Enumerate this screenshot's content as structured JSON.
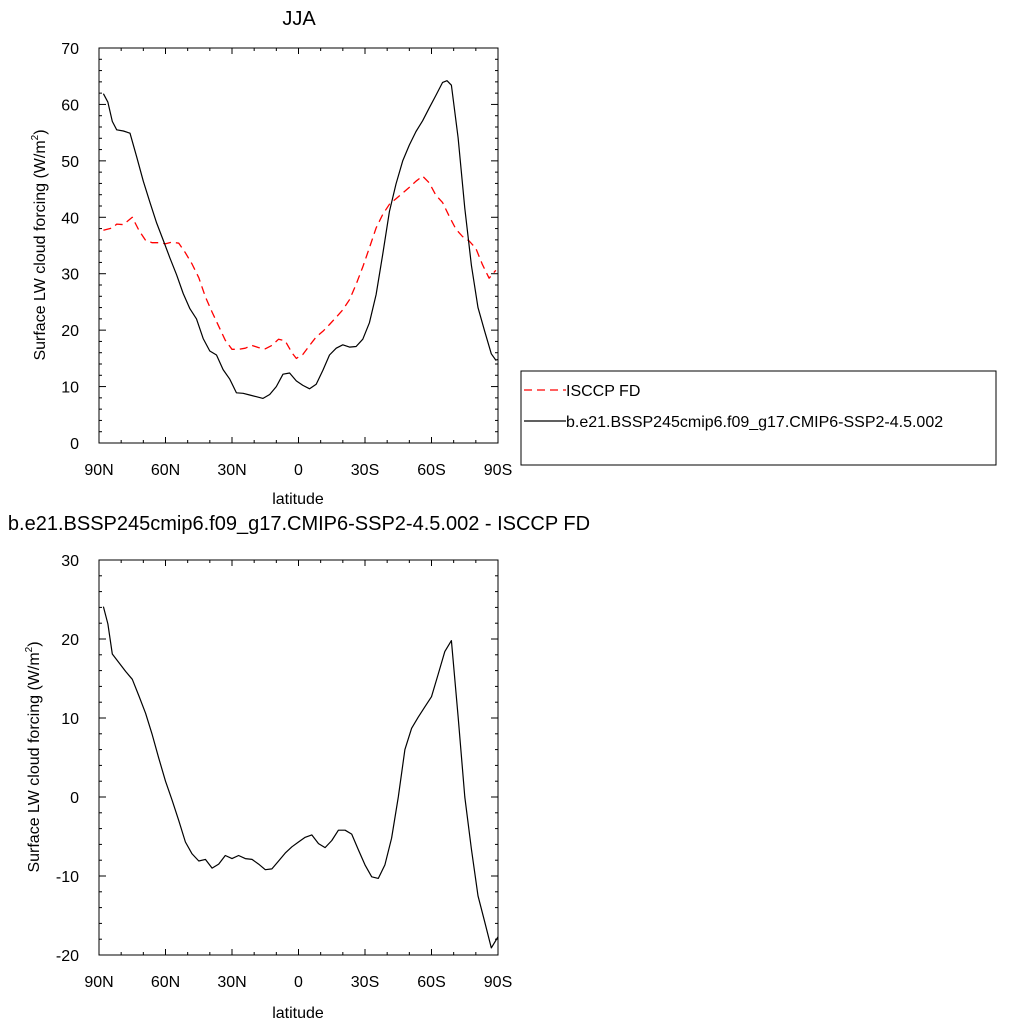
{
  "chart_data": [
    {
      "type": "line",
      "title": "JJA",
      "xlabel": "latitude",
      "ylabel": "Surface LW cloud forcing (W/m",
      "ylabel_sup": "2",
      "ylabel_tail": ")",
      "xlim": [
        90,
        -90
      ],
      "ylim": [
        0,
        70
      ],
      "x_ticks": [
        90,
        60,
        30,
        0,
        -30,
        -60,
        -90
      ],
      "x_tick_labels": [
        "90N",
        "60N",
        "30N",
        "0",
        "30S",
        "60S",
        "90S"
      ],
      "y_ticks": [
        0,
        10,
        20,
        30,
        40,
        50,
        60,
        70
      ],
      "y_tick_labels": [
        "0",
        "10",
        "20",
        "30",
        "40",
        "50",
        "60",
        "70"
      ],
      "grid": false,
      "legend_position": "right",
      "series": [
        {
          "name": "ISCCP FD",
          "color": "#ff0000",
          "dash": "dashed",
          "points": [
            [
              88,
              37.7
            ],
            [
              84,
              38.1
            ],
            [
              82,
              38.8
            ],
            [
              79,
              38.7
            ],
            [
              75,
              40.0
            ],
            [
              72,
              37.7
            ],
            [
              69,
              35.9
            ],
            [
              66,
              35.5
            ],
            [
              63,
              35.5
            ],
            [
              60,
              35.3
            ],
            [
              57,
              35.6
            ],
            [
              54,
              35.4
            ],
            [
              51,
              33.7
            ],
            [
              48,
              31.7
            ],
            [
              45,
              29.3
            ],
            [
              42,
              25.9
            ],
            [
              39,
              23.2
            ],
            [
              36,
              20.7
            ],
            [
              33,
              18.2
            ],
            [
              30,
              16.6
            ],
            [
              27,
              16.6
            ],
            [
              24,
              16.8
            ],
            [
              21,
              17.3
            ],
            [
              18,
              16.9
            ],
            [
              15,
              16.7
            ],
            [
              12,
              17.3
            ],
            [
              9,
              18.4
            ],
            [
              6,
              18.1
            ],
            [
              3,
              16.0
            ],
            [
              1,
              15.0
            ],
            [
              -2,
              15.7
            ],
            [
              -5,
              17.3
            ],
            [
              -8,
              18.8
            ],
            [
              -11,
              19.8
            ],
            [
              -14,
              21.0
            ],
            [
              -17,
              22.3
            ],
            [
              -20,
              23.6
            ],
            [
              -23,
              25.4
            ],
            [
              -26,
              28.1
            ],
            [
              -29,
              31.2
            ],
            [
              -32,
              34.6
            ],
            [
              -35,
              38.1
            ],
            [
              -38,
              40.5
            ],
            [
              -41,
              42.3
            ],
            [
              -44,
              43.3
            ],
            [
              -47,
              44.3
            ],
            [
              -50,
              45.3
            ],
            [
              -53,
              46.4
            ],
            [
              -56,
              47.3
            ],
            [
              -59,
              46.1
            ],
            [
              -62,
              43.9
            ],
            [
              -65,
              42.6
            ],
            [
              -68,
              40.2
            ],
            [
              -71,
              37.9
            ],
            [
              -74,
              36.6
            ],
            [
              -77,
              35.8
            ],
            [
              -80,
              34.5
            ],
            [
              -83,
              31.6
            ],
            [
              -86,
              29.2
            ],
            [
              -89,
              30.6
            ]
          ]
        },
        {
          "name": "b.e21.BSSP245cmip6.f09_g17.CMIP6-SSP2-4.5.002",
          "color": "#000000",
          "dash": "solid",
          "points": [
            [
              88,
              61.9
            ],
            [
              86,
              60.4
            ],
            [
              84,
              57.0
            ],
            [
              82,
              55.5
            ],
            [
              79,
              55.3
            ],
            [
              76,
              54.9
            ],
            [
              73,
              50.7
            ],
            [
              70,
              46.4
            ],
            [
              67,
              42.6
            ],
            [
              64,
              39.0
            ],
            [
              61,
              35.9
            ],
            [
              58,
              32.8
            ],
            [
              55,
              29.8
            ],
            [
              52,
              26.5
            ],
            [
              49,
              23.8
            ],
            [
              46,
              22.0
            ],
            [
              43,
              18.5
            ],
            [
              40,
              16.3
            ],
            [
              37,
              15.6
            ],
            [
              34,
              13.0
            ],
            [
              31,
              11.3
            ],
            [
              28,
              8.9
            ],
            [
              25,
              8.8
            ],
            [
              22,
              8.5
            ],
            [
              19,
              8.2
            ],
            [
              16,
              7.9
            ],
            [
              13,
              8.6
            ],
            [
              10,
              10.0
            ],
            [
              7,
              12.2
            ],
            [
              4,
              12.4
            ],
            [
              1,
              11.0
            ],
            [
              -2,
              10.2
            ],
            [
              -5,
              9.6
            ],
            [
              -8,
              10.4
            ],
            [
              -11,
              12.9
            ],
            [
              -14,
              15.6
            ],
            [
              -17,
              16.8
            ],
            [
              -20,
              17.4
            ],
            [
              -23,
              17.0
            ],
            [
              -26,
              17.1
            ],
            [
              -29,
              18.4
            ],
            [
              -32,
              21.3
            ],
            [
              -35,
              26.3
            ],
            [
              -38,
              33.4
            ],
            [
              -41,
              41.0
            ],
            [
              -44,
              45.9
            ],
            [
              -47,
              50.0
            ],
            [
              -50,
              52.8
            ],
            [
              -53,
              55.2
            ],
            [
              -56,
              57.1
            ],
            [
              -59,
              59.4
            ],
            [
              -62,
              61.6
            ],
            [
              -65,
              63.9
            ],
            [
              -67,
              64.2
            ],
            [
              -69,
              63.4
            ],
            [
              -72,
              54.1
            ],
            [
              -75,
              41.6
            ],
            [
              -78,
              31.5
            ],
            [
              -81,
              24.0
            ],
            [
              -84,
              19.8
            ],
            [
              -87,
              15.8
            ],
            [
              -89,
              14.7
            ],
            [
              -92,
              15.0
            ],
            [
              -95,
              14.0
            ]
          ]
        }
      ]
    },
    {
      "type": "line",
      "title": "b.e21.BSSP245cmip6.f09_g17.CMIP6-SSP2-4.5.002 - ISCCP FD",
      "xlabel": "latitude",
      "ylabel": "Surface LW cloud forcing (W/m",
      "ylabel_sup": "2",
      "ylabel_tail": ")",
      "xlim": [
        90,
        -90
      ],
      "ylim": [
        -20,
        30
      ],
      "x_ticks": [
        90,
        60,
        30,
        0,
        -30,
        -60,
        -90
      ],
      "x_tick_labels": [
        "90N",
        "60N",
        "30N",
        "0",
        "30S",
        "60S",
        "90S"
      ],
      "y_ticks": [
        -20,
        -10,
        0,
        10,
        20,
        30
      ],
      "y_tick_labels": [
        "-20",
        "-10",
        "0",
        "10",
        "20",
        "30"
      ],
      "grid": false,
      "series": [
        {
          "color": "#000000",
          "dash": "solid",
          "points": [
            [
              88,
              24.1
            ],
            [
              86,
              21.9
            ],
            [
              84,
              18.1
            ],
            [
              81,
              17.0
            ],
            [
              78,
              15.9
            ],
            [
              75,
              14.9
            ],
            [
              72,
              12.8
            ],
            [
              69,
              10.6
            ],
            [
              66,
              7.9
            ],
            [
              63,
              4.9
            ],
            [
              60,
              2.0
            ],
            [
              57,
              -0.4
            ],
            [
              54,
              -3.0
            ],
            [
              51,
              -5.7
            ],
            [
              48,
              -7.2
            ],
            [
              45,
              -8.1
            ],
            [
              42,
              -7.9
            ],
            [
              39,
              -9.0
            ],
            [
              36,
              -8.5
            ],
            [
              33,
              -7.4
            ],
            [
              30,
              -7.8
            ],
            [
              27,
              -7.4
            ],
            [
              24,
              -7.8
            ],
            [
              21,
              -7.9
            ],
            [
              18,
              -8.5
            ],
            [
              15,
              -9.2
            ],
            [
              12,
              -9.1
            ],
            [
              9,
              -8.1
            ],
            [
              6,
              -7.1
            ],
            [
              3,
              -6.3
            ],
            [
              0,
              -5.7
            ],
            [
              -3,
              -5.1
            ],
            [
              -6,
              -4.8
            ],
            [
              -9,
              -5.9
            ],
            [
              -12,
              -6.4
            ],
            [
              -15,
              -5.5
            ],
            [
              -18,
              -4.2
            ],
            [
              -21,
              -4.2
            ],
            [
              -24,
              -4.7
            ],
            [
              -27,
              -6.7
            ],
            [
              -30,
              -8.6
            ],
            [
              -33,
              -10.1
            ],
            [
              -36,
              -10.3
            ],
            [
              -39,
              -8.6
            ],
            [
              -42,
              -5.2
            ],
            [
              -45,
              0.0
            ],
            [
              -48,
              6.0
            ],
            [
              -51,
              8.7
            ],
            [
              -54,
              10.1
            ],
            [
              -57,
              11.4
            ],
            [
              -60,
              12.7
            ],
            [
              -63,
              15.5
            ],
            [
              -66,
              18.4
            ],
            [
              -69,
              19.8
            ],
            [
              -72,
              10.2
            ],
            [
              -75,
              0.0
            ],
            [
              -78,
              -6.6
            ],
            [
              -81,
              -12.5
            ],
            [
              -84,
              -15.8
            ],
            [
              -87,
              -19.1
            ],
            [
              -90,
              -17.7
            ],
            [
              -93,
              -14.5
            ],
            [
              -96,
              -17.2
            ]
          ]
        }
      ]
    }
  ]
}
